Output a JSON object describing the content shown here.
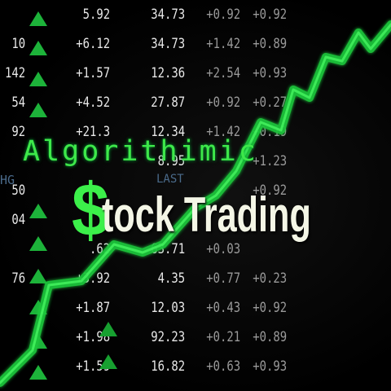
{
  "title_line1": "Algorithimic",
  "title_dollar": "$",
  "title_line2": "tock Trading",
  "labels": {
    "last": "LAST",
    "chg": "HG"
  },
  "columns": {
    "c0": [
      "",
      "10",
      "142",
      "54",
      "92",
      "",
      "50",
      "04",
      "",
      "76",
      "",
      "",
      ""
    ],
    "c1": [
      "5.92",
      "+6.12",
      "+1.57",
      "+4.52",
      "+21.3",
      "",
      "",
      "",
      ".62",
      "+3.92",
      "+1.87",
      "+1.98",
      "+1.59"
    ],
    "c2": [
      "34.73",
      "34.73",
      "12.36",
      "27.87",
      "12.34",
      "8.95",
      "",
      "",
      "63.71",
      "4.35",
      "12.03",
      "92.23",
      "16.82"
    ],
    "c3": [
      "+0.92",
      "+1.42",
      "+2.54",
      "+0.92",
      "+1.42",
      "",
      "",
      "",
      "+0.03",
      "+0.77",
      "+0.43",
      "+0.21",
      "+0.63"
    ],
    "c4": [
      "+0.92",
      "+0.89",
      "+0.93",
      "+0.27",
      "+0.19",
      "+1.23",
      "+0.92",
      "",
      "",
      "+0.23",
      "+0.92",
      "+0.89",
      "+0.93"
    ]
  },
  "colors": {
    "accent_green": "#3cf04a",
    "chart_green": "#1fc43a",
    "text_cream": "#f4f6e6"
  }
}
